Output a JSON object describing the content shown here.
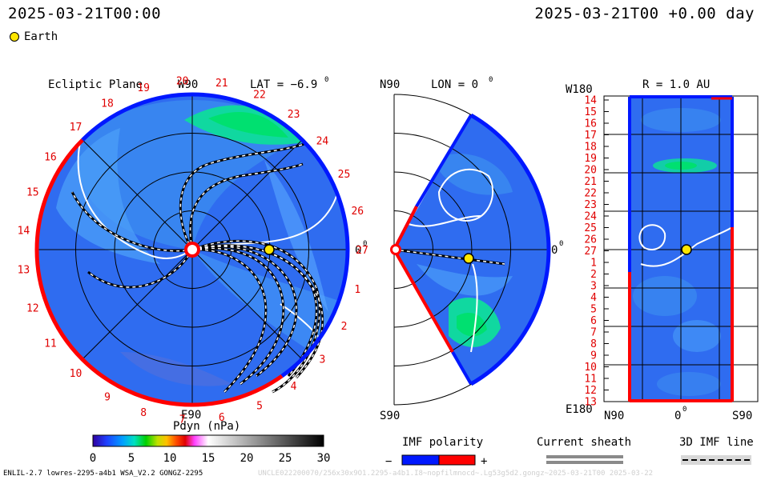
{
  "header": {
    "left_timestamp": "2025-03-21T00:00",
    "right_timestamp": "2025-03-21T00 +0.00 day"
  },
  "legend": {
    "earth_label": "Earth",
    "earth_color": "#ffe600"
  },
  "ecliptic_panel": {
    "title": "Ecliptic Plane",
    "top_label": "W90",
    "bottom_label": "E90",
    "right_label": "0",
    "right_label_sup": "0",
    "lat_label": "LAT = −6.9",
    "lat_sup": "0",
    "carrington_labels": [
      "1",
      "2",
      "3",
      "4",
      "5",
      "6",
      "7",
      "8",
      "9",
      "10",
      "11",
      "12",
      "13",
      "14",
      "15",
      "16",
      "17",
      "18",
      "19",
      "20",
      "21",
      "22",
      "23",
      "24",
      "25",
      "26",
      "27"
    ]
  },
  "meridional_panel": {
    "top_left_label": "N90",
    "bottom_left_label": "S90",
    "lon_label": "LON = 0",
    "lon_sup": "0",
    "right_label": "0",
    "right_label_sup": "0"
  },
  "sphere_panel": {
    "top_label": "W180",
    "bottom_label": "E180",
    "r_label": "R = 1.0 AU",
    "x_axis_left": "N90",
    "x_axis_mid": "0",
    "x_axis_mid_sup": "0",
    "x_axis_right": "S90",
    "y_labels": [
      "14",
      "15",
      "16",
      "17",
      "18",
      "19",
      "20",
      "21",
      "22",
      "23",
      "24",
      "25",
      "26",
      "27",
      "1",
      "2",
      "3",
      "4",
      "5",
      "6",
      "7",
      "8",
      "9",
      "10",
      "11",
      "12",
      "13"
    ]
  },
  "colorbar": {
    "title": "Pdyn (nPa)",
    "ticks": [
      "0",
      "5",
      "10",
      "15",
      "20",
      "25",
      "30"
    ],
    "range": [
      0,
      30
    ]
  },
  "imf_polarity": {
    "title": "IMF polarity",
    "minus": "−",
    "plus": "+",
    "negative_color": "#0018ff",
    "positive_color": "#ff0000"
  },
  "current_sheath": {
    "title": "Current sheath"
  },
  "imf_line": {
    "title": "3D IMF line"
  },
  "footer": {
    "left": "ENLIL-2.7 lowres-2295-a4b1 WSA_V2.2 GONGZ-2295",
    "right": "UNCLE022200070/256x30x9O1.2295-a4b1.I8~nopfilmnocd~.Lg53g5d2.gongz~2025-03-21T00  2025-03-22"
  },
  "colors": {
    "background_blue": "#2f6cf0",
    "boundary_positive": "#ff0000",
    "boundary_negative": "#0018ff",
    "label_red": "#e00000"
  }
}
